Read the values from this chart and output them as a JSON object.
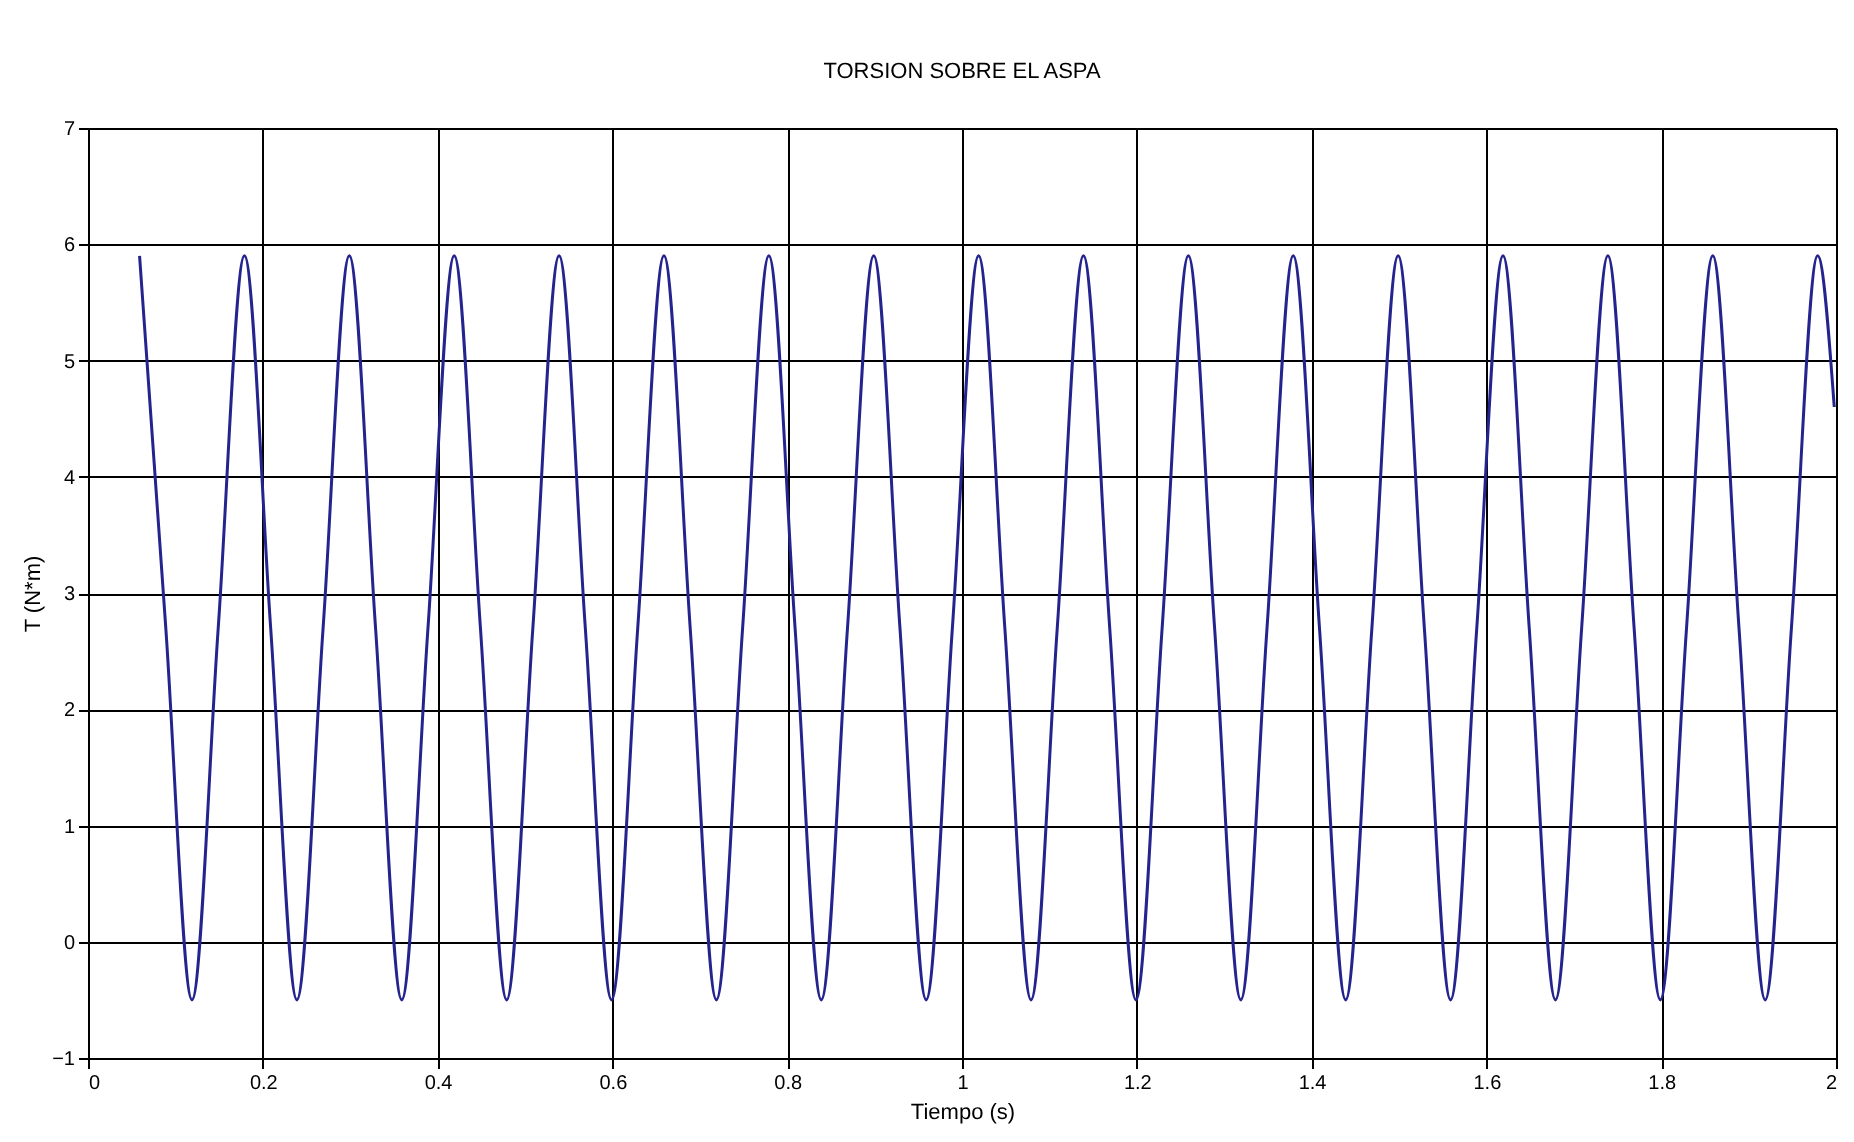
{
  "chart_data": {
    "type": "line",
    "title": "TORSION SOBRE EL ASPA",
    "xlabel": "Tiempo (s)",
    "ylabel": "T (N*m)",
    "xlim": [
      0,
      2
    ],
    "xticks": [
      0,
      0.2,
      0.4,
      0.6,
      0.8,
      1,
      1.2,
      1.4,
      1.6,
      1.8,
      2
    ],
    "ylim": [
      -1,
      7
    ],
    "yticks": [
      -1,
      0,
      1,
      2,
      3,
      4,
      5,
      6,
      7
    ],
    "grid": true,
    "marker": "none",
    "line_style": "solid",
    "series": [
      {
        "color": "#24248f",
        "x": [
          0.059,
          0.089,
          0.119,
          0.149,
          0.179,
          0.209,
          0.239,
          0.269,
          0.299,
          0.329,
          0.359,
          0.389,
          0.419,
          0.449,
          0.479,
          0.509,
          0.539,
          0.569,
          0.599,
          0.629,
          0.659,
          0.689,
          0.719,
          0.749,
          0.779,
          0.809,
          0.839,
          0.869,
          0.899,
          0.929,
          0.959,
          0.989,
          1.019,
          1.049,
          1.079,
          1.109,
          1.139,
          1.169,
          1.199,
          1.229,
          1.259,
          1.289,
          1.319,
          1.349,
          1.379,
          1.409,
          1.439,
          1.469,
          1.499,
          1.529,
          1.559,
          1.589,
          1.619,
          1.649,
          1.679,
          1.709,
          1.739,
          1.769,
          1.799,
          1.829,
          1.859,
          1.889,
          1.919,
          1.949,
          1.979,
          1.998
        ],
        "values": [
          5.9,
          2.7,
          -0.5,
          2.7,
          5.9,
          2.7,
          -0.5,
          2.7,
          5.9,
          2.7,
          -0.5,
          2.7,
          5.9,
          2.7,
          -0.5,
          2.7,
          5.9,
          2.7,
          -0.5,
          2.7,
          5.9,
          2.7,
          -0.5,
          2.7,
          5.9,
          2.7,
          -0.5,
          2.7,
          5.9,
          2.7,
          -0.5,
          2.7,
          5.9,
          2.7,
          -0.5,
          2.7,
          5.9,
          2.7,
          -0.5,
          2.7,
          5.9,
          2.7,
          -0.5,
          2.7,
          5.9,
          2.7,
          -0.5,
          2.7,
          5.9,
          2.7,
          -0.5,
          2.7,
          5.9,
          2.7,
          -0.5,
          2.7,
          5.9,
          2.7,
          -0.5,
          2.7,
          5.9,
          2.7,
          -0.5,
          2.7,
          5.9,
          4.6
        ]
      }
    ]
  }
}
